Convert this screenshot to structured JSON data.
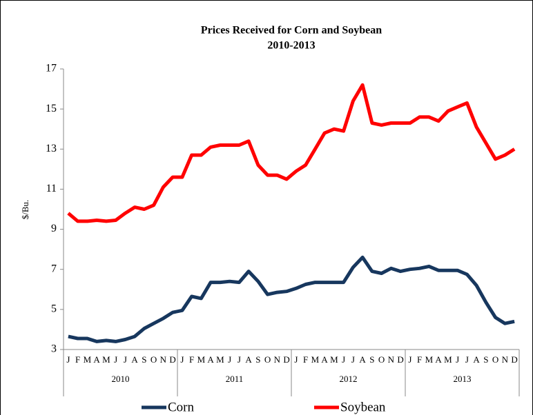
{
  "chart_data": {
    "type": "line",
    "title": "Prices Received for Corn and Soybean",
    "subtitle": "2010-2013",
    "y_label": "$/Bu.",
    "categories": [
      "J",
      "F",
      "M",
      "A",
      "M",
      "J",
      "J",
      "A",
      "S",
      "O",
      "N",
      "D",
      "J",
      "F",
      "M",
      "A",
      "M",
      "J",
      "J",
      "A",
      "S",
      "O",
      "N",
      "D",
      "J",
      "F",
      "M",
      "A",
      "M",
      "J",
      "J",
      "A",
      "S",
      "O",
      "N",
      "D",
      "J",
      "F",
      "M",
      "A",
      "M",
      "J",
      "J",
      "A",
      "S",
      "O",
      "N",
      "D"
    ],
    "x_groups": [
      "2010",
      "2011",
      "2012",
      "2013"
    ],
    "series": [
      {
        "name": "Corn",
        "color": "#17375e",
        "values": [
          3.65,
          3.55,
          3.55,
          3.4,
          3.45,
          3.4,
          3.5,
          3.65,
          4.05,
          4.3,
          4.55,
          4.85,
          4.95,
          5.65,
          5.55,
          6.35,
          6.35,
          6.4,
          6.35,
          6.9,
          6.4,
          5.75,
          5.85,
          5.9,
          6.05,
          6.25,
          6.35,
          6.35,
          6.35,
          6.35,
          7.1,
          7.6,
          6.9,
          6.8,
          7.05,
          6.9,
          7.0,
          7.05,
          7.15,
          6.95,
          6.95,
          6.95,
          6.75,
          6.2,
          5.35,
          4.6,
          4.3,
          4.4
        ]
      },
      {
        "name": "Soybean",
        "color": "#ff0000",
        "values": [
          9.8,
          9.4,
          9.4,
          9.45,
          9.4,
          9.45,
          9.8,
          10.1,
          10.0,
          10.2,
          11.1,
          11.6,
          11.6,
          12.7,
          12.7,
          13.1,
          13.2,
          13.2,
          13.2,
          13.4,
          12.2,
          11.7,
          11.7,
          11.5,
          11.9,
          12.2,
          13.0,
          13.8,
          14.0,
          13.9,
          15.4,
          16.2,
          14.3,
          14.2,
          14.3,
          14.3,
          14.3,
          14.6,
          14.6,
          14.4,
          14.9,
          15.1,
          15.3,
          14.1,
          13.3,
          12.5,
          12.7,
          13.0
        ]
      }
    ],
    "ylim": [
      3,
      17
    ],
    "yticks": [
      3,
      5,
      7,
      9,
      11,
      13,
      15,
      17
    ],
    "grid": false,
    "legend": "bottom"
  }
}
